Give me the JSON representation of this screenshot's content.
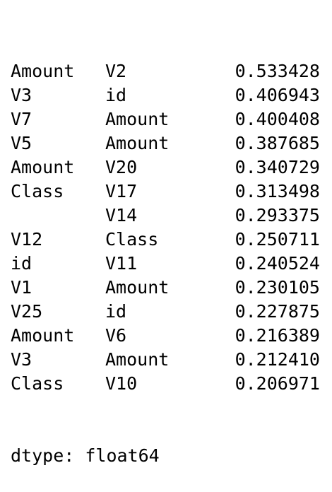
{
  "rows": [
    {
      "a": "Amount",
      "b": "V2",
      "v": "0.533428"
    },
    {
      "a": "V3",
      "b": "id",
      "v": "0.406943"
    },
    {
      "a": "V7",
      "b": "Amount",
      "v": "0.400408"
    },
    {
      "a": "V5",
      "b": "Amount",
      "v": "0.387685"
    },
    {
      "a": "Amount",
      "b": "V20",
      "v": "0.340729"
    },
    {
      "a": "Class",
      "b": "V17",
      "v": "0.313498"
    },
    {
      "a": "",
      "b": "V14",
      "v": "0.293375"
    },
    {
      "a": "V12",
      "b": "Class",
      "v": "0.250711"
    },
    {
      "a": "id",
      "b": "V11",
      "v": "0.240524"
    },
    {
      "a": "V1",
      "b": "Amount",
      "v": "0.230105"
    },
    {
      "a": "V25",
      "b": "id",
      "v": "0.227875"
    },
    {
      "a": "Amount",
      "b": "V6",
      "v": "0.216389"
    },
    {
      "a": "V3",
      "b": "Amount",
      "v": "0.212410"
    },
    {
      "a": "Class",
      "b": "V10",
      "v": "0.206971"
    }
  ],
  "dtype_line": "dtype: float64"
}
